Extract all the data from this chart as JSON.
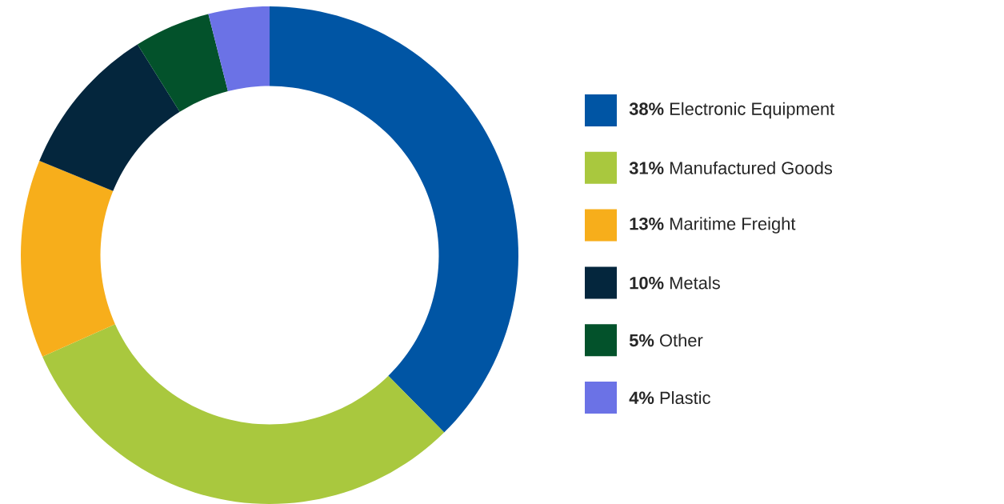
{
  "chart_data": {
    "type": "donut",
    "categories": [
      "**38%** Electronic Equipment",
      "**31%** Manufactured Goods",
      "**13%** Maritime Freight",
      "**10%** Metals",
      "**5%** Other",
      "**4%** Plastic"
    ],
    "values": [
      38,
      31,
      13,
      10,
      5,
      4
    ],
    "colors": [
      "#0055a4",
      "#a9c83e",
      "#f7ae1b",
      "#04263d",
      "#03522b",
      "#6b72e6"
    ],
    "legend": "right"
  }
}
